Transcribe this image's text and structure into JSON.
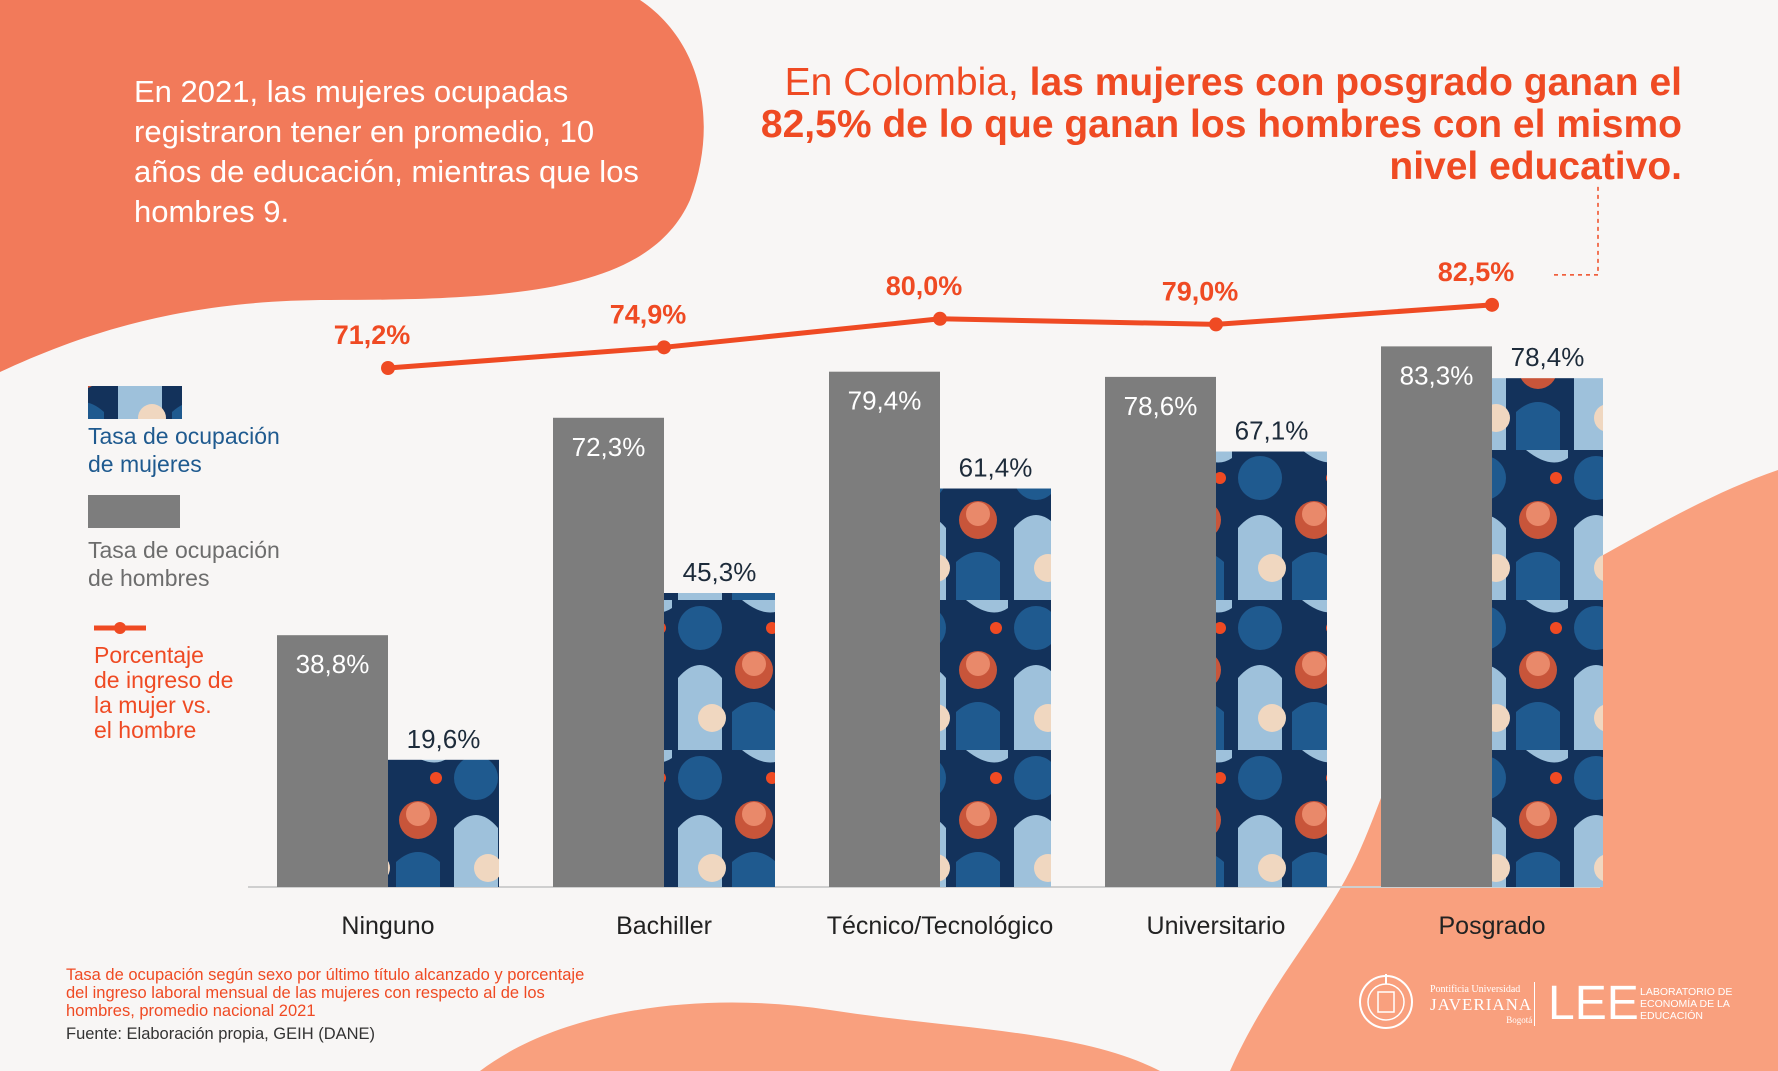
{
  "intro_text": "En 2021, las mujeres ocupadas registraron tener en promedio, 10 años de educación, mientras que los hombres 9.",
  "headline": {
    "lead": "En Colombia,",
    "bold": "las mujeres con posgrado ganan el 82,5% de lo que ganan los hombres con el mismo nivel educativo."
  },
  "legend": {
    "women": "Tasa de ocupación de mujeres",
    "men": "Tasa de ocupación de hombres",
    "line": "Porcentaje de ingreso de la mujer vs. el hombre"
  },
  "chart_data": {
    "type": "bar",
    "categories": [
      "Ninguno",
      "Bachiller",
      "Técnico/Tecnológico",
      "Universitario",
      "Posgrado"
    ],
    "series": [
      {
        "name": "Tasa de ocupación de hombres",
        "values": [
          38.8,
          72.3,
          79.4,
          78.6,
          83.3
        ],
        "labels": [
          "38,8%",
          "72,3%",
          "79,4%",
          "78,6%",
          "83,3%"
        ],
        "color": "#7d7d7d"
      },
      {
        "name": "Tasa de ocupación de mujeres",
        "values": [
          19.6,
          45.3,
          61.4,
          67.1,
          78.4
        ],
        "labels": [
          "19,6%",
          "45,3%",
          "61,4%",
          "67,1%",
          "78,4%"
        ],
        "color": "#1f5a8f"
      },
      {
        "name": "Porcentaje de ingreso de la mujer vs. el hombre",
        "type": "line",
        "values": [
          71.2,
          74.9,
          80.0,
          79.0,
          82.5
        ],
        "labels": [
          "71,2%",
          "74,9%",
          "80,0%",
          "79,0%",
          "82,5%"
        ],
        "color": "#ef4a23"
      }
    ],
    "ylim": [
      0,
      90
    ],
    "xlabel": "",
    "ylabel": ""
  },
  "caption": "Tasa de ocupación según sexo por último título alcanzado y porcentaje del ingreso laboral mensual de las mujeres con respecto al de los hombres, promedio nacional 2021",
  "source": "Fuente: Elaboración propia, GEIH (DANE)",
  "logos": {
    "univ_small": "Pontificia Universidad",
    "univ_name": "JAVERIANA",
    "univ_city": "Bogotá",
    "lee": "LEE",
    "lee_desc": "LABORATORIO DE ECONOMÍA DE LA EDUCACIÓN"
  },
  "colors": {
    "orange": "#f27a5a",
    "peach": "#f9a07e",
    "accent": "#ef4a23",
    "men_bar": "#7d7d7d",
    "women_navy": "#13325b",
    "women_blue": "#1f5a8f",
    "women_light": "#9ec1db"
  }
}
